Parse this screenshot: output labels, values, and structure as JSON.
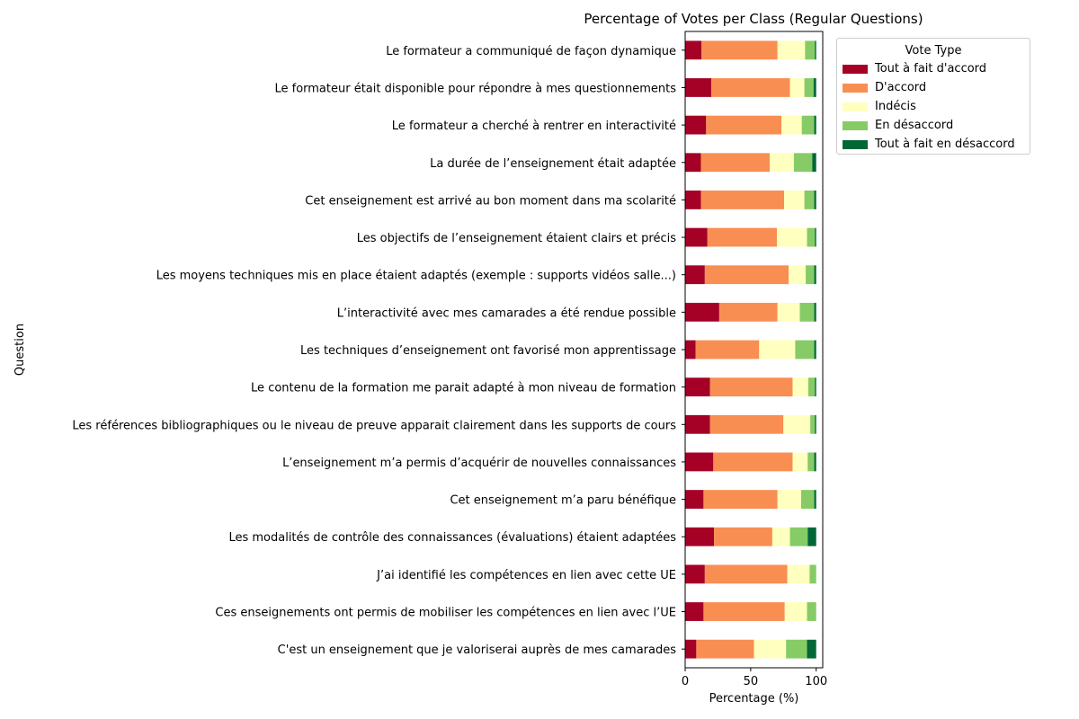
{
  "chart_data": {
    "type": "bar",
    "orientation": "horizontal",
    "stacked": true,
    "title": "Percentage of Votes per Class (Regular Questions)",
    "xlabel": "Percentage (%)",
    "ylabel": "Question",
    "xlim": [
      0,
      105
    ],
    "xticks": [
      "0",
      "50",
      "100"
    ],
    "grid": false,
    "legend": {
      "title": "Vote Type",
      "placement": "upper-right-outside"
    },
    "categories": [
      "Le formateur a communiqué de façon dynamique",
      "Le formateur était disponible pour répondre à mes questionnements",
      "Le formateur a cherché à rentrer en interactivité",
      "La durée de l’enseignement était adaptée",
      "Cet enseignement est arrivé au bon moment dans ma scolarité",
      "Les objectifs de l’enseignement étaient clairs et précis",
      "Les moyens techniques mis en place étaient adaptés (exemple : supports vidéos  salle...)",
      "L’interactivité avec mes camarades a été rendue possible",
      "Les techniques d’enseignement ont favorisé mon apprentissage",
      "Le contenu de la formation me parait adapté à mon niveau de formation",
      "Les références bibliographiques ou le niveau de preuve apparait clairement dans les supports de cours",
      "L’enseignement m’a permis d’acquérir de nouvelles connaissances",
      "Cet enseignement m’a paru bénéfique",
      "Les modalités de contrôle des connaissances (évaluations) étaient adaptées",
      "J’ai identifié les compétences en lien avec cette UE",
      "Ces enseignements ont permis de mobiliser les compétences en lien avec l’UE",
      "C'est un enseignement que je valoriserai auprès de mes camarades"
    ],
    "series": [
      {
        "name": "Tout à fait d'accord",
        "color": "#a50026",
        "values": [
          12.5,
          20,
          16,
          12,
          12,
          17,
          15,
          26,
          8,
          19,
          19,
          21.5,
          14,
          22,
          15,
          14,
          8.5
        ]
      },
      {
        "name": "D'accord",
        "color": "#f98e52",
        "values": [
          58,
          60,
          57.5,
          52.5,
          63.5,
          53,
          64,
          44.5,
          48.5,
          63,
          56,
          60.5,
          56.5,
          44.5,
          63,
          62,
          44
        ]
      },
      {
        "name": "Indécis",
        "color": "#ffffbf",
        "values": [
          21,
          11,
          15.5,
          18.5,
          15.5,
          23,
          13,
          17,
          27.5,
          12,
          20.5,
          11.5,
          18,
          13.5,
          17,
          17,
          24.5
        ]
      },
      {
        "name": "En désaccord",
        "color": "#86cb66",
        "values": [
          7.5,
          7,
          9.5,
          14,
          7.5,
          6,
          6.5,
          11,
          14.5,
          5,
          3.5,
          5,
          10,
          13.5,
          5,
          7,
          16
        ]
      },
      {
        "name": "Tout à fait en désaccord",
        "color": "#006837",
        "values": [
          1,
          2,
          1.5,
          3,
          1.5,
          1,
          1.5,
          1.5,
          1.5,
          1,
          1,
          1.5,
          1.5,
          6.5,
          0,
          0,
          7
        ]
      }
    ]
  }
}
